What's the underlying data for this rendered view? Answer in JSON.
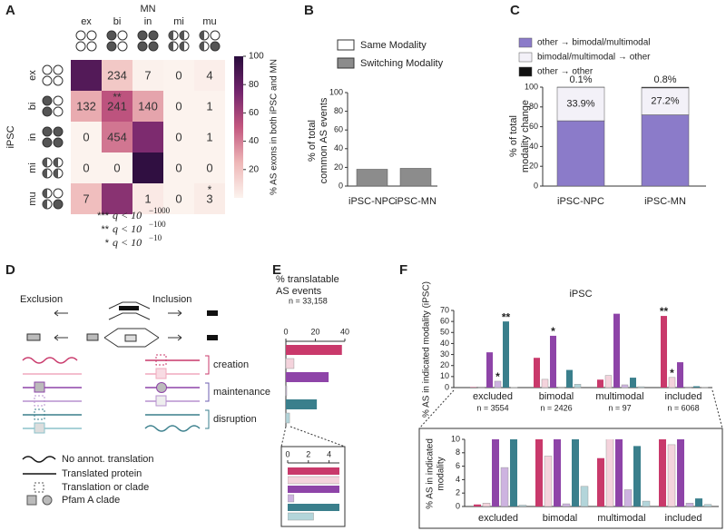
{
  "panel_labels": [
    "A",
    "B",
    "C",
    "D",
    "E",
    "F"
  ],
  "chart_data": [
    {
      "type": "heatmap",
      "x_label": "MN",
      "y_label": "iPSC",
      "categories": [
        "ex",
        "bi",
        "in",
        "mi",
        "mu"
      ],
      "counts": [
        [
          null,
          234,
          7,
          0,
          4
        ],
        [
          132,
          241,
          140,
          0,
          1
        ],
        [
          0,
          454,
          null,
          0,
          1
        ],
        [
          0,
          0,
          null,
          0,
          0
        ],
        [
          7,
          null,
          1,
          0,
          3
        ]
      ],
      "percent": [
        [
          86,
          18,
          1,
          0,
          2
        ],
        [
          28,
          52,
          30,
          0,
          0
        ],
        [
          0,
          42,
          72,
          0,
          0
        ],
        [
          0,
          0,
          98,
          0,
          0
        ],
        [
          22,
          68,
          4,
          0,
          3
        ]
      ],
      "stars": [
        [
          null,
          null,
          null,
          null,
          null
        ],
        [
          null,
          "**",
          null,
          null,
          null
        ],
        [
          null,
          null,
          null,
          null,
          null
        ],
        [
          null,
          null,
          null,
          null,
          null
        ],
        [
          null,
          null,
          null,
          null,
          "*"
        ]
      ],
      "clim": [
        0,
        100
      ],
      "cticks": [
        20,
        40,
        60,
        80,
        100
      ],
      "colorbar_label": "% AS exons in both iPSC and MN",
      "colormap": [
        "#fcf3ee",
        "#eeb7b7",
        "#c3577f",
        "#73256d",
        "#2a0d3d"
      ],
      "notes": [
        {
          "stars": "***",
          "text": "q < 10",
          "exponent": "−1000"
        },
        {
          "stars": "**",
          "text": "q < 10",
          "exponent": "−100"
        },
        {
          "stars": "*",
          "text": "q < 10",
          "exponent": "−10"
        }
      ]
    },
    {
      "type": "bar",
      "ylabel": [
        "% of total",
        "common AS events"
      ],
      "categories": [
        "iPSC-NPC",
        "iPSC-MN"
      ],
      "series": [
        {
          "name": "Same Modality",
          "color": "#ffffff",
          "values": [
            null,
            null
          ]
        },
        {
          "name": "Switching Modality",
          "color": "#8c8c8c",
          "values": [
            18,
            19
          ]
        }
      ],
      "ylim": [
        0,
        100
      ],
      "yticks": [
        0,
        20,
        40,
        60,
        80,
        100
      ]
    },
    {
      "type": "stacked_bar",
      "ylabel": [
        "% of total",
        "modality change"
      ],
      "categories": [
        "iPSC-NPC",
        "iPSC-MN"
      ],
      "series": [
        {
          "name": "other → bimodal/multimodal",
          "color": "#8b7bc9",
          "values": [
            66.0,
            72.0
          ]
        },
        {
          "name": "bimodal/multimodal → other",
          "color": "#f3f1f8",
          "values": [
            33.9,
            27.2
          ],
          "value_labels": [
            "33.9%",
            "27.2%"
          ]
        },
        {
          "name": "other → other",
          "color": "#111111",
          "values": [
            0.1,
            0.8
          ],
          "value_labels": [
            "0.1%",
            "0.8%"
          ]
        }
      ],
      "ylim": [
        0,
        100
      ],
      "yticks": [
        0,
        20,
        40,
        60,
        80,
        100
      ]
    },
    {
      "type": "hbar",
      "title": [
        "% translatable",
        "AS events"
      ],
      "note": "n = 33,158",
      "values": [
        38,
        5.5,
        29,
        0.6,
        21,
        2.5
      ],
      "colors": [
        "#c9396b",
        "#f4d3dc",
        "#8e44a8",
        "#cdb3e0",
        "#3a7f8c",
        "#b3d5da"
      ],
      "xlim": [
        0,
        40
      ],
      "xticks": [
        0,
        20,
        40
      ],
      "inset": {
        "xlim": [
          0,
          5
        ],
        "xticks": [
          0,
          2,
          4
        ]
      }
    },
    {
      "type": "grouped_bar",
      "title": "iPSC",
      "ylabel": "% AS in indicated modality (iPSC)",
      "categories": [
        "excluded",
        "bimodal",
        "multimodal",
        "included"
      ],
      "n_labels": [
        "n = 3554",
        "n = 2426",
        "n = 97",
        "n = 6068"
      ],
      "series": [
        {
          "color": "#c9396b",
          "values": [
            0.3,
            27,
            7.2,
            65
          ],
          "stars": [
            null,
            null,
            null,
            "**"
          ]
        },
        {
          "color": "#f4d3dc",
          "values": [
            0.5,
            7.5,
            11,
            9.2
          ],
          "stars": [
            null,
            null,
            null,
            "*"
          ]
        },
        {
          "color": "#8e44a8",
          "values": [
            32,
            47,
            67,
            23
          ],
          "stars": [
            null,
            "*",
            null,
            null
          ]
        },
        {
          "color": "#cdb3e0",
          "values": [
            5.8,
            0.4,
            2.5,
            0.5
          ],
          "stars": [
            "*",
            null,
            null,
            null
          ]
        },
        {
          "color": "#3a7f8c",
          "values": [
            60,
            16,
            9,
            1.2
          ],
          "stars": [
            "**",
            null,
            null,
            null
          ]
        },
        {
          "color": "#b3d5da",
          "values": [
            0.2,
            3.0,
            0.8,
            0.3
          ],
          "stars": [
            null,
            null,
            null,
            null
          ]
        }
      ],
      "ylim": [
        0,
        70
      ],
      "yticks": [
        0,
        10,
        20,
        30,
        40,
        50,
        60,
        70
      ],
      "inset": {
        "ylabel": [
          "% AS in indicated",
          "modality"
        ],
        "ylim": [
          0,
          10
        ],
        "yticks": [
          0,
          2,
          4,
          6,
          8,
          10
        ]
      }
    }
  ],
  "diagram": {
    "exclusion": "Exclusion",
    "inclusion": "Inclusion",
    "groups": [
      "creation",
      "maintenance",
      "disruption"
    ],
    "legend": [
      "No annot. translation",
      "Translated protein",
      "Translation or clade",
      "Pfam A clade"
    ]
  }
}
